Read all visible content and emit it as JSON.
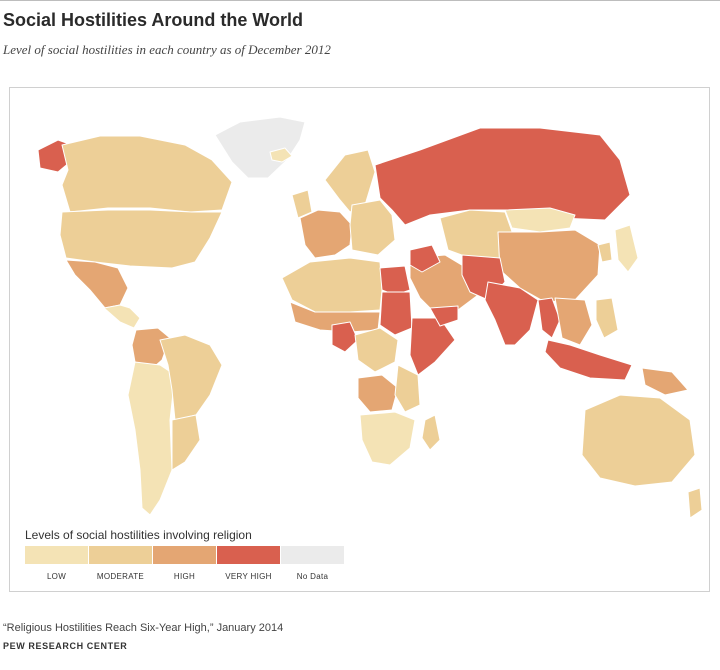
{
  "title": "Social Hostilities Around the World",
  "subtitle": "Level of social hostilities in each country as of December 2012",
  "colors": {
    "low": "#f4e3b5",
    "moderate": "#edcf97",
    "high": "#e4a673",
    "very_high": "#d9604f",
    "no_data": "#ebebeb",
    "map_border": "#ffffff"
  },
  "legend": {
    "title": "Levels of social hostilities involving religion",
    "items": [
      {
        "label": "LOW",
        "level": "low"
      },
      {
        "label": "MODERATE",
        "level": "moderate"
      },
      {
        "label": "HIGH",
        "level": "high"
      },
      {
        "label": "VERY HIGH",
        "level": "very_high"
      },
      {
        "label": "No Data",
        "level": "no_data"
      }
    ]
  },
  "regions": [
    {
      "name": "greenland",
      "level": "no_data"
    },
    {
      "name": "alaska",
      "level": "very_high"
    },
    {
      "name": "canada",
      "level": "moderate"
    },
    {
      "name": "united-states",
      "level": "moderate"
    },
    {
      "name": "mexico",
      "level": "high"
    },
    {
      "name": "central-america",
      "level": "low"
    },
    {
      "name": "colombia",
      "level": "high"
    },
    {
      "name": "south-america",
      "level": "low"
    },
    {
      "name": "brazil",
      "level": "moderate"
    },
    {
      "name": "southern-cone",
      "level": "moderate"
    },
    {
      "name": "iceland",
      "level": "low"
    },
    {
      "name": "scandinavia",
      "level": "moderate"
    },
    {
      "name": "uk-ireland",
      "level": "moderate"
    },
    {
      "name": "western-europe",
      "level": "high"
    },
    {
      "name": "eastern-europe",
      "level": "moderate"
    },
    {
      "name": "russia",
      "level": "very_high"
    },
    {
      "name": "north-africa",
      "level": "moderate"
    },
    {
      "name": "sahel",
      "level": "high"
    },
    {
      "name": "egypt",
      "level": "very_high"
    },
    {
      "name": "sudan",
      "level": "very_high"
    },
    {
      "name": "nigeria",
      "level": "very_high"
    },
    {
      "name": "central-africa",
      "level": "moderate"
    },
    {
      "name": "congo",
      "level": "high"
    },
    {
      "name": "horn-of-africa",
      "level": "very_high"
    },
    {
      "name": "east-africa",
      "level": "moderate"
    },
    {
      "name": "southern-africa",
      "level": "low"
    },
    {
      "name": "madagascar",
      "level": "moderate"
    },
    {
      "name": "arabia",
      "level": "high"
    },
    {
      "name": "yemen",
      "level": "very_high"
    },
    {
      "name": "iraq",
      "level": "very_high"
    },
    {
      "name": "central-asia",
      "level": "moderate"
    },
    {
      "name": "mongolia",
      "level": "low"
    },
    {
      "name": "china",
      "level": "high"
    },
    {
      "name": "pakistan-afghanistan",
      "level": "very_high"
    },
    {
      "name": "india",
      "level": "very_high"
    },
    {
      "name": "myanmar",
      "level": "very_high"
    },
    {
      "name": "southeast-asia",
      "level": "high"
    },
    {
      "name": "japan",
      "level": "low"
    },
    {
      "name": "korea",
      "level": "moderate"
    },
    {
      "name": "philippines",
      "level": "moderate"
    },
    {
      "name": "indonesia",
      "level": "very_high"
    },
    {
      "name": "papua-new-guinea",
      "level": "high"
    },
    {
      "name": "australia",
      "level": "moderate"
    },
    {
      "name": "new-zealand",
      "level": "moderate"
    }
  ],
  "note": "“Religious Hostilities Reach Six-Year High,” January 2014",
  "source": "PEW RESEARCH CENTER"
}
